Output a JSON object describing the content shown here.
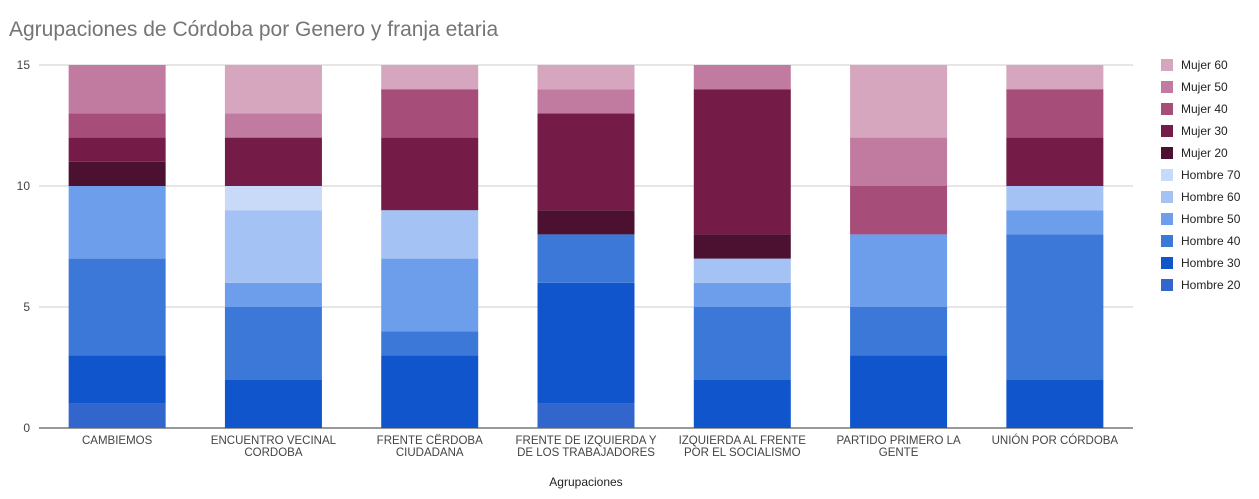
{
  "chart_data": {
    "type": "bar",
    "stacked": true,
    "title": "Agrupaciones de Córdoba por Genero y franja etaria",
    "xlabel": "Agrupaciones",
    "ylabel": "",
    "ylim": [
      0,
      15
    ],
    "yticks": [
      "0",
      "5",
      "10",
      "15"
    ],
    "grid": true,
    "legend_position": "right",
    "categories": [
      [
        "CAMBIEMOS"
      ],
      [
        "ENCUENTRO VECINAL",
        "CORDOBA"
      ],
      [
        "FRENTE CËRDOBA",
        "CIUDADANA"
      ],
      [
        "FRENTE DE IZQUIERDA Y",
        "DE LOS TRABAJADORES"
      ],
      [
        "IZQUIERDA AL FRENTE",
        "POR EL SOCIALISMO"
      ],
      [
        "PARTIDO PRIMERO LA",
        "GENTE"
      ],
      [
        "UNIÓN POR CÓRDOBA"
      ]
    ],
    "series": [
      {
        "name": "Hombre 20",
        "color": "#3366cc",
        "values": [
          1,
          0,
          0,
          1,
          0,
          0,
          0
        ]
      },
      {
        "name": "Hombre 30",
        "color": "#1155cc",
        "values": [
          2,
          2,
          3,
          5,
          2,
          3,
          2
        ]
      },
      {
        "name": "Hombre 40",
        "color": "#3c78d8",
        "values": [
          4,
          3,
          1,
          2,
          3,
          2,
          6
        ]
      },
      {
        "name": "Hombre 50",
        "color": "#6d9eeb",
        "values": [
          3,
          1,
          3,
          0,
          1,
          3,
          1
        ]
      },
      {
        "name": "Hombre 60",
        "color": "#a4c2f4",
        "values": [
          0,
          3,
          2,
          0,
          1,
          0,
          1
        ]
      },
      {
        "name": "Hombre 70",
        "color": "#c9daf8",
        "values": [
          0,
          1,
          0,
          0,
          0,
          0,
          0
        ]
      },
      {
        "name": "Mujer 20",
        "color": "#4c1130",
        "values": [
          1,
          0,
          0,
          1,
          1,
          0,
          0
        ]
      },
      {
        "name": "Mujer 30",
        "color": "#741b47",
        "values": [
          1,
          2,
          3,
          4,
          6,
          0,
          2
        ]
      },
      {
        "name": "Mujer 40",
        "color": "#a64d79",
        "values": [
          1,
          0,
          2,
          0,
          0,
          2,
          2
        ]
      },
      {
        "name": "Mujer 50",
        "color": "#c27ba0",
        "values": [
          2,
          1,
          0,
          1,
          1,
          2,
          0
        ]
      },
      {
        "name": "Mujer 60",
        "color": "#d5a6bd",
        "values": [
          0,
          2,
          1,
          1,
          0,
          3,
          1
        ]
      }
    ],
    "legend_order": [
      "Mujer 60",
      "Mujer 50",
      "Mujer 40",
      "Mujer 30",
      "Mujer 20",
      "Hombre 70",
      "Hombre 60",
      "Hombre 50",
      "Hombre 40",
      "Hombre 30",
      "Hombre 20"
    ]
  }
}
